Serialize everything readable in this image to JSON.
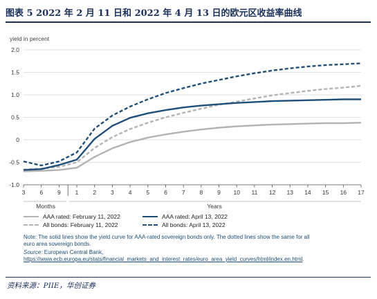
{
  "header": {
    "title": "图表 5   2022 年 2 月 11 日和 2022 年 4 月 13 日的欧元区收益率曲线"
  },
  "chart_data": {
    "type": "line",
    "y_unit_label": "yield in percent",
    "ylim": [
      -1.0,
      2.0
    ],
    "y_ticks": [
      "2.0",
      "1.5",
      "1.0",
      "0.5",
      "0",
      "-0.5",
      "-1.0"
    ],
    "x_tick_labels": [
      "3",
      "6",
      "9",
      "1",
      "2",
      "3",
      "4",
      "5",
      "6",
      "7",
      "8",
      "9",
      "10",
      "11",
      "12",
      "13",
      "14",
      "15",
      "16",
      "17"
    ],
    "x_group_labels": [
      "Months",
      "Years"
    ],
    "maturities_in_years": [
      0.25,
      0.5,
      0.75,
      1,
      2,
      3,
      4,
      5,
      6,
      7,
      8,
      9,
      10,
      11,
      12,
      13,
      14,
      15,
      16,
      17
    ],
    "series": [
      {
        "name": "AAA rated: February 11, 2022",
        "color": "#b3b3b3",
        "style": "solid",
        "values": [
          -0.7,
          -0.69,
          -0.67,
          -0.62,
          -0.38,
          -0.19,
          -0.05,
          0.05,
          0.12,
          0.18,
          0.23,
          0.27,
          0.3,
          0.32,
          0.34,
          0.35,
          0.36,
          0.37,
          0.37,
          0.38
        ]
      },
      {
        "name": "All bonds: February 11, 2022",
        "color": "#b3b3b3",
        "style": "dashed",
        "values": [
          -0.66,
          -0.64,
          -0.6,
          -0.5,
          -0.18,
          0.06,
          0.24,
          0.38,
          0.5,
          0.6,
          0.69,
          0.78,
          0.85,
          0.92,
          0.99,
          1.04,
          1.09,
          1.13,
          1.16,
          1.2
        ]
      },
      {
        "name": "AAA rated: April 13, 2022",
        "color": "#1f4e79",
        "style": "solid",
        "values": [
          -0.67,
          -0.65,
          -0.56,
          -0.44,
          0.02,
          0.31,
          0.49,
          0.59,
          0.66,
          0.72,
          0.76,
          0.79,
          0.82,
          0.84,
          0.86,
          0.87,
          0.88,
          0.89,
          0.9,
          0.9
        ]
      },
      {
        "name": "All bonds: April 13, 2022",
        "color": "#1f4e79",
        "style": "dashed",
        "values": [
          -0.48,
          -0.57,
          -0.48,
          -0.28,
          0.25,
          0.54,
          0.74,
          0.9,
          1.04,
          1.15,
          1.25,
          1.33,
          1.41,
          1.48,
          1.54,
          1.59,
          1.63,
          1.66,
          1.68,
          1.7
        ]
      }
    ]
  },
  "legend": {
    "items": [
      {
        "label": "AAA rated: February 11, 2022",
        "color": "#b3b3b3",
        "style": "solid"
      },
      {
        "label": "AAA rated: April 13, 2022",
        "color": "#1f4e79",
        "style": "solid"
      },
      {
        "label": "All bonds: February 11, 2022",
        "color": "#b3b3b3",
        "style": "dashed"
      },
      {
        "label": "All bonds: April 13, 2022",
        "color": "#1f4e79",
        "style": "dashed"
      }
    ]
  },
  "note": {
    "text": "Note: The solid lines show the yield curve for AAA-rated sovereign bonds only. The dotted lines show the same for all euro area sovereign bonds.",
    "source_label": "Source:",
    "source_text": " European Central Bank, ",
    "source_link": "https://www.ecb.europa.eu/stats/financial_markets_and_interest_rates/euro_area_yield_curves/html/index.en.html",
    "source_end": "."
  },
  "footer": {
    "source": "资料来源：PIIE，华创证券"
  }
}
